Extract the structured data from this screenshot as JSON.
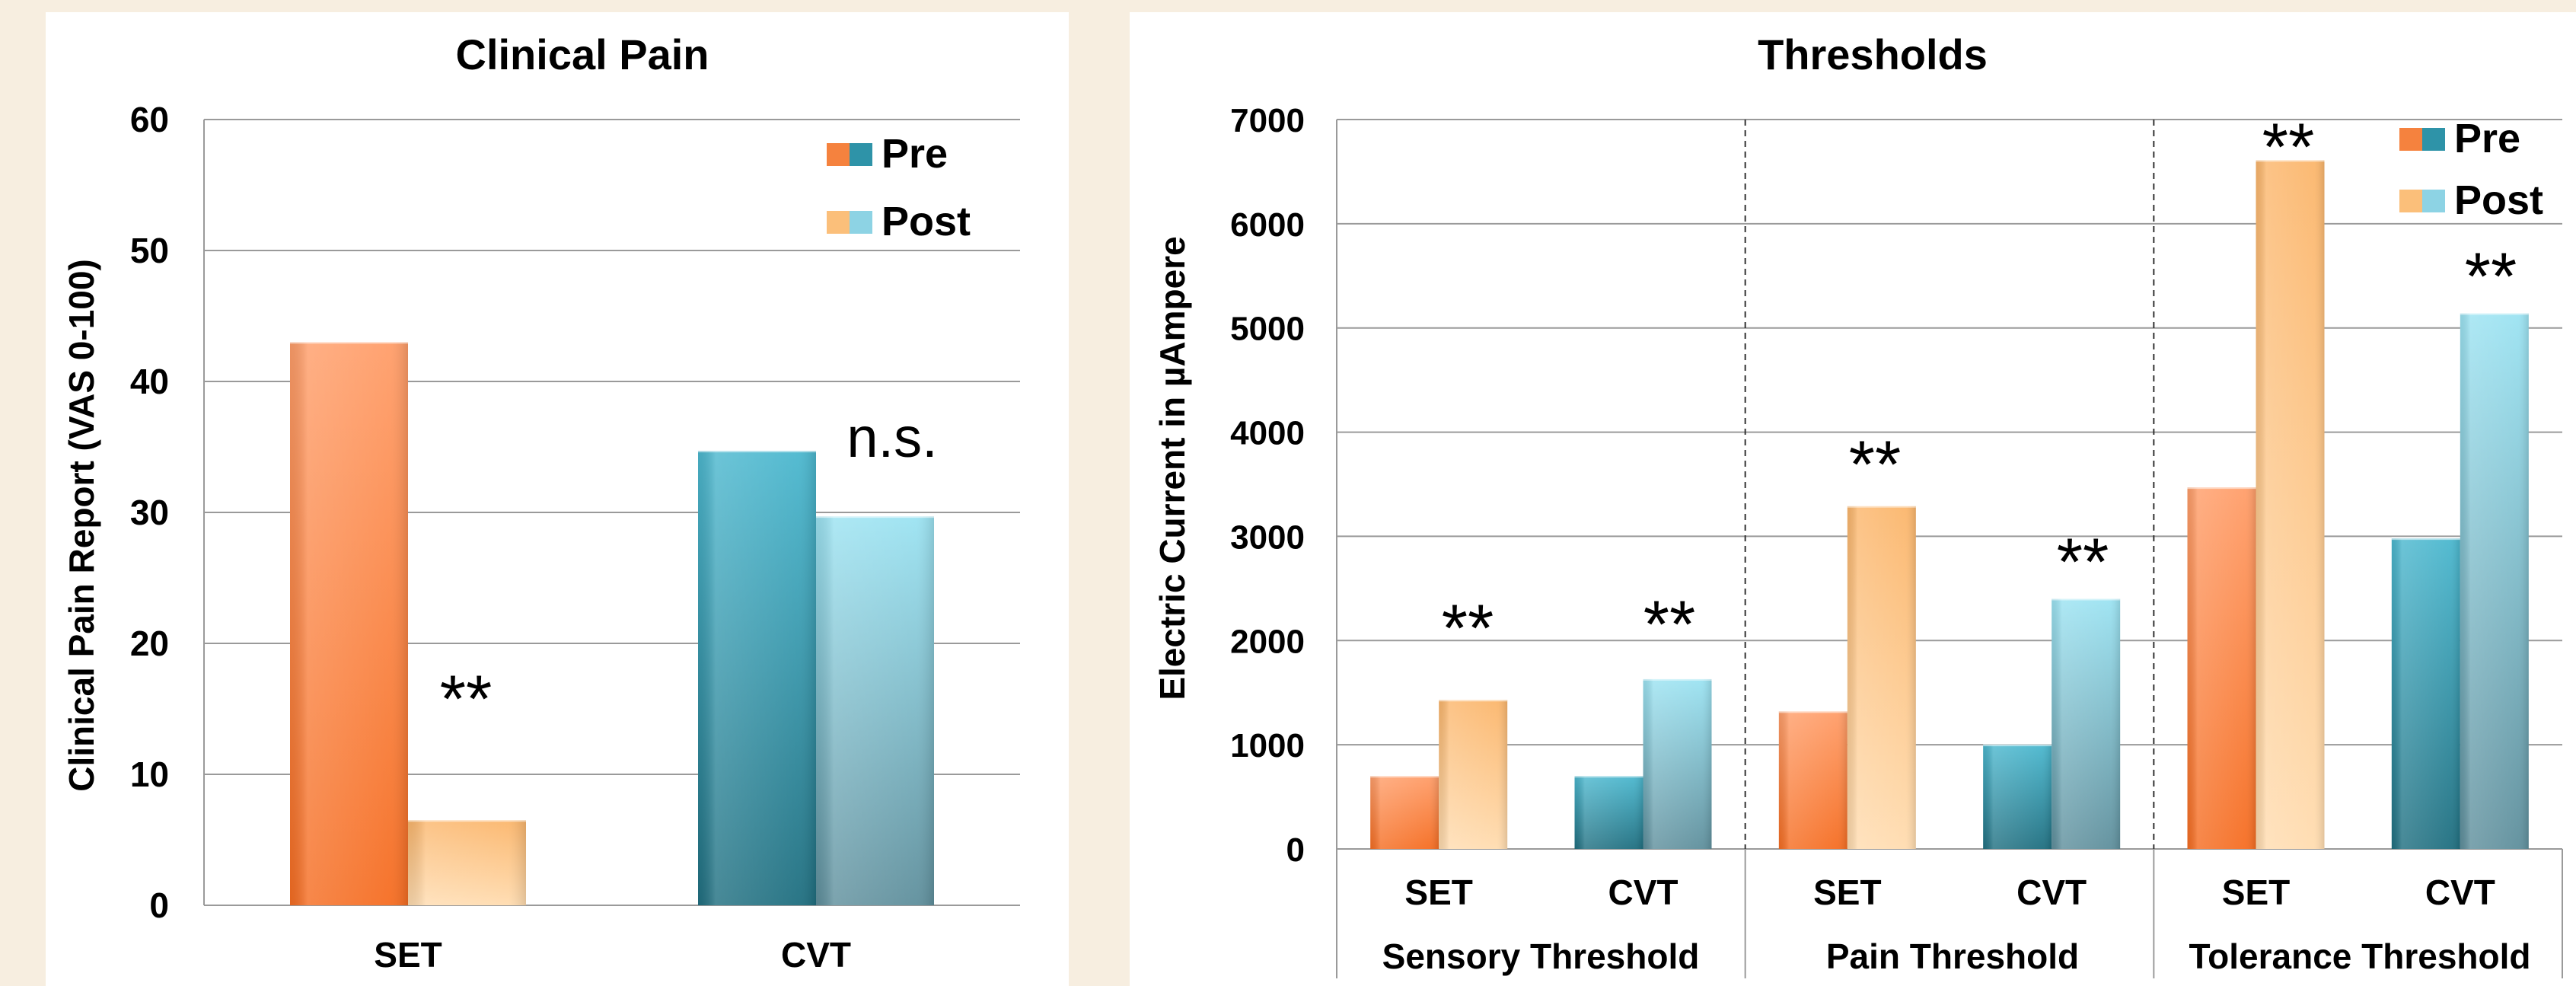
{
  "colors": {
    "background": "#f7eee0",
    "set_pre": "#f5823e",
    "set_post": "#fbbf7a",
    "cvt_pre": "#2e93a8",
    "cvt_post": "#8dd3e4",
    "grid": "#9a9a9a",
    "text": "#000000"
  },
  "chart_data": [
    {
      "type": "bar",
      "title": "Clinical Pain",
      "ylabel": "Clinical Pain Report (VAS 0-100)",
      "xlabel": "",
      "ylim": [
        0,
        60
      ],
      "yticks": [
        0,
        10,
        20,
        30,
        40,
        50,
        60
      ],
      "ytick_labels": [
        "0",
        "10",
        "20",
        "30",
        "40",
        "50",
        "60"
      ],
      "grid": true,
      "legend_position": "top-right",
      "legend": [
        {
          "label": "Pre",
          "colors": [
            "#f5823e",
            "#2e93a8"
          ]
        },
        {
          "label": "Post",
          "colors": [
            "#fbbf7a",
            "#8dd3e4"
          ]
        }
      ],
      "categories": [
        "SET",
        "CVT"
      ],
      "series": [
        {
          "name": "Pre",
          "values": [
            43,
            34.7
          ]
        },
        {
          "name": "Post",
          "values": [
            6.5,
            29.7
          ]
        }
      ],
      "annotations": [
        "**",
        "n.s."
      ]
    },
    {
      "type": "bar",
      "title": "Thresholds",
      "ylabel": "Electric Current in µAmpere",
      "xlabel": "",
      "ylim": [
        0,
        7000
      ],
      "yticks": [
        0,
        1000,
        2000,
        3000,
        4000,
        5000,
        6000,
        7000
      ],
      "ytick_labels": [
        "0",
        "1000",
        "2000",
        "3000",
        "4000",
        "5000",
        "6000",
        "7000"
      ],
      "grid": true,
      "legend_position": "top-right",
      "legend": [
        {
          "label": "Pre",
          "colors": [
            "#f5823e",
            "#2e93a8"
          ]
        },
        {
          "label": "Post",
          "colors": [
            "#fbbf7a",
            "#8dd3e4"
          ]
        }
      ],
      "groups": [
        "Sensory Threshold",
        "Pain Threshold",
        "Tolerance Threshold"
      ],
      "categories": [
        "SET",
        "CVT",
        "SET",
        "CVT",
        "SET",
        "CVT"
      ],
      "series": [
        {
          "name": "Pre",
          "values": [
            700,
            700,
            1320,
            1000,
            3470,
            2980
          ]
        },
        {
          "name": "Post",
          "values": [
            1430,
            1630,
            3290,
            2400,
            6610,
            5140
          ]
        }
      ],
      "annotations": [
        "**",
        "**",
        "**",
        "**",
        "**",
        "**"
      ]
    }
  ]
}
